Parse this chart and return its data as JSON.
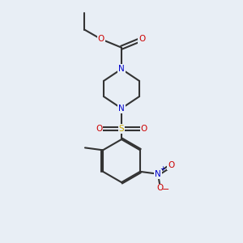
{
  "background_color": "#e8eef5",
  "bond_color": "#333333",
  "nitrogen_color": "#0000cc",
  "oxygen_color": "#cc0000",
  "sulfur_color": "#ccaa00",
  "line_width": 1.5,
  "figsize": [
    3.0,
    3.0
  ],
  "dpi": 100,
  "xlim": [
    0,
    10
  ],
  "ylim": [
    0,
    10
  ]
}
